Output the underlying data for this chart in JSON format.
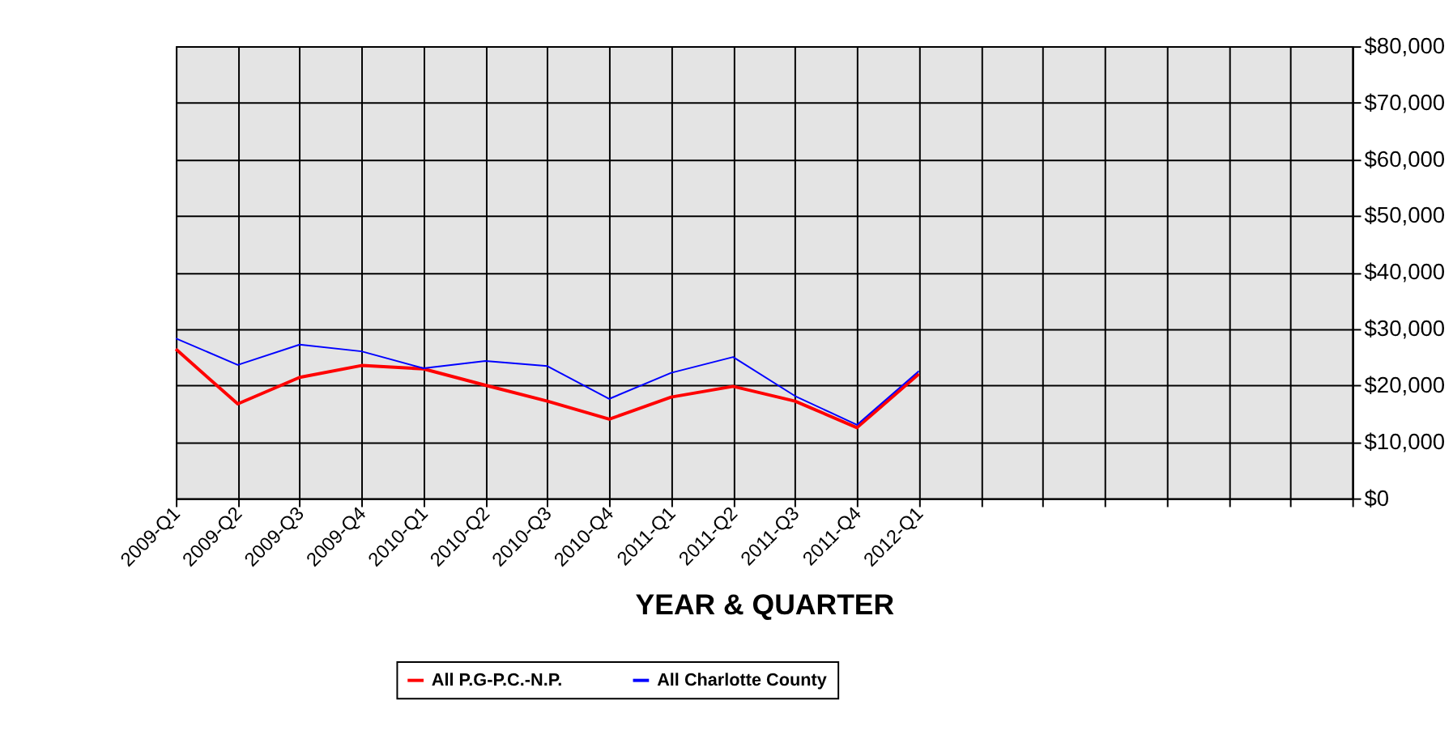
{
  "chart_data": {
    "type": "line",
    "xlabel": "YEAR & QUARTER",
    "categories": [
      "2009-Q1",
      "2009-Q2",
      "2009-Q3",
      "2009-Q4",
      "2010-Q1",
      "2010-Q2",
      "2010-Q3",
      "2010-Q4",
      "2011-Q1",
      "2011-Q2",
      "2011-Q3",
      "2011-Q4",
      "2012-Q1",
      null,
      null,
      null,
      null,
      null,
      null,
      null
    ],
    "series": [
      {
        "name": "All P.G-P.C.-N.P.",
        "color": "#ff0000",
        "values": [
          26400,
          16700,
          21400,
          23500,
          22900,
          20000,
          17200,
          14000,
          17900,
          19800,
          17200,
          12500,
          22000,
          null,
          null,
          null,
          null,
          null,
          null,
          null
        ]
      },
      {
        "name": "All Charlotte County",
        "color": "#0000ff",
        "values": [
          28300,
          23600,
          27200,
          26000,
          23000,
          24300,
          23400,
          17600,
          22200,
          25000,
          18100,
          13000,
          22500,
          null,
          null,
          null,
          null,
          null,
          null,
          null
        ]
      }
    ],
    "ylim": [
      0,
      80000
    ],
    "yticks": [
      {
        "value": 0,
        "label": "$0"
      },
      {
        "value": 10000,
        "label": "$10,000"
      },
      {
        "value": 20000,
        "label": "$20,000"
      },
      {
        "value": 30000,
        "label": "$30,000"
      },
      {
        "value": 40000,
        "label": "$40,000"
      },
      {
        "value": 50000,
        "label": "$50,000"
      },
      {
        "value": 60000,
        "label": "$60,000"
      },
      {
        "value": 70000,
        "label": "$70,000"
      },
      {
        "value": 80000,
        "label": "$80,000"
      }
    ],
    "grid": true,
    "legend": "bottom",
    "marker": "none",
    "line_style": "solid"
  }
}
